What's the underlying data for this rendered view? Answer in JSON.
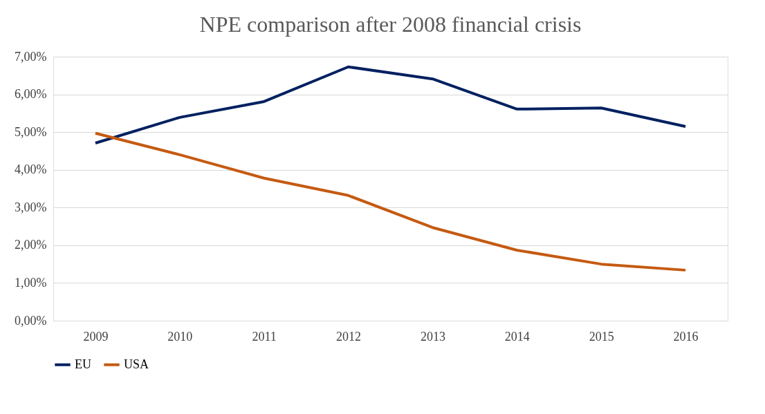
{
  "chart_data": {
    "type": "line",
    "title": "NPE comparison after 2008 financial crisis",
    "categories": [
      "2009",
      "2010",
      "2011",
      "2012",
      "2013",
      "2014",
      "2015",
      "2016"
    ],
    "series": [
      {
        "name": "EU",
        "color": "#002060",
        "values": [
          4.71,
          5.39,
          5.81,
          6.73,
          6.41,
          5.61,
          5.64,
          5.15
        ]
      },
      {
        "name": "USA",
        "color": "#c55a11",
        "values": [
          4.97,
          4.4,
          3.78,
          3.32,
          2.47,
          1.87,
          1.5,
          1.34
        ]
      }
    ],
    "ylim": [
      0,
      7
    ],
    "yticks": [
      {
        "value": 0,
        "label": "0,00%"
      },
      {
        "value": 1,
        "label": "1,00%"
      },
      {
        "value": 2,
        "label": "2,00%"
      },
      {
        "value": 3,
        "label": "3,00%"
      },
      {
        "value": 4,
        "label": "4,00%"
      },
      {
        "value": 5,
        "label": "5,00%"
      },
      {
        "value": 6,
        "label": "6,00%"
      },
      {
        "value": 7,
        "label": "7,00%"
      }
    ],
    "grid": "y",
    "legend": "bottom",
    "marker": "none",
    "line_style": "solid"
  }
}
